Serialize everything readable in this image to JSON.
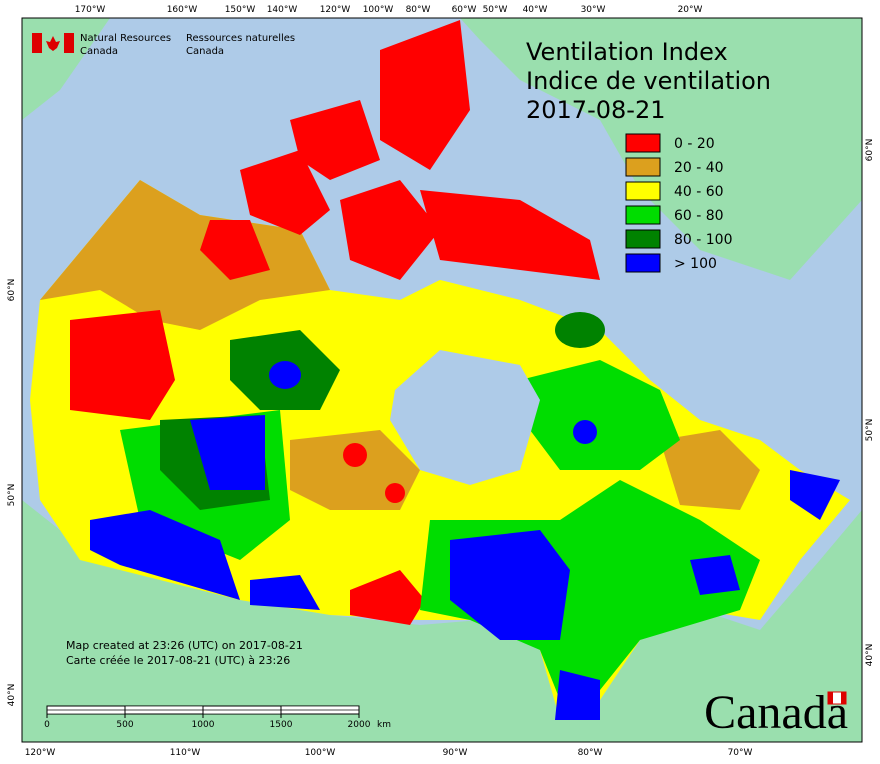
{
  "header": {
    "agency_en_1": "Natural Resources",
    "agency_en_2": "Canada",
    "agency_fr_1": "Ressources naturelles",
    "agency_fr_2": "Canada"
  },
  "title": {
    "line1": "Ventilation Index",
    "line2": "Indice de ventilation",
    "date": "2017-08-21"
  },
  "legend": [
    {
      "label": "0 - 20",
      "color": "#ff0000"
    },
    {
      "label": "20 - 40",
      "color": "#dca01e"
    },
    {
      "label": "40 - 60",
      "color": "#ffff00"
    },
    {
      "label": "60 - 80",
      "color": "#00dd00"
    },
    {
      "label": "80 - 100",
      "color": "#008200"
    },
    {
      "label": "> 100",
      "color": "#0000ff"
    }
  ],
  "top_longitudes": [
    "170°W",
    "160°W",
    "150°W",
    "140°W",
    "120°W",
    "100°W",
    "80°W",
    "60°W",
    "50°W",
    "40°W",
    "30°W",
    "20°W"
  ],
  "bottom_longitudes": [
    "120°W",
    "110°W",
    "100°W",
    "90°W",
    "80°W",
    "70°W"
  ],
  "left_latitudes": [
    "60°N",
    "50°N",
    "40°N"
  ],
  "right_latitudes": [
    "60°N",
    "50°N",
    "40°N"
  ],
  "notes": {
    "created_en": "Map created at 23:26 (UTC) on 2017-08-21",
    "created_fr": "Carte créée le 2017-08-21 (UTC) à 23:26"
  },
  "scale_bar": {
    "ticks": [
      0,
      500,
      1000,
      1500,
      2000
    ],
    "unit": "km"
  },
  "wordmark": "Canada"
}
